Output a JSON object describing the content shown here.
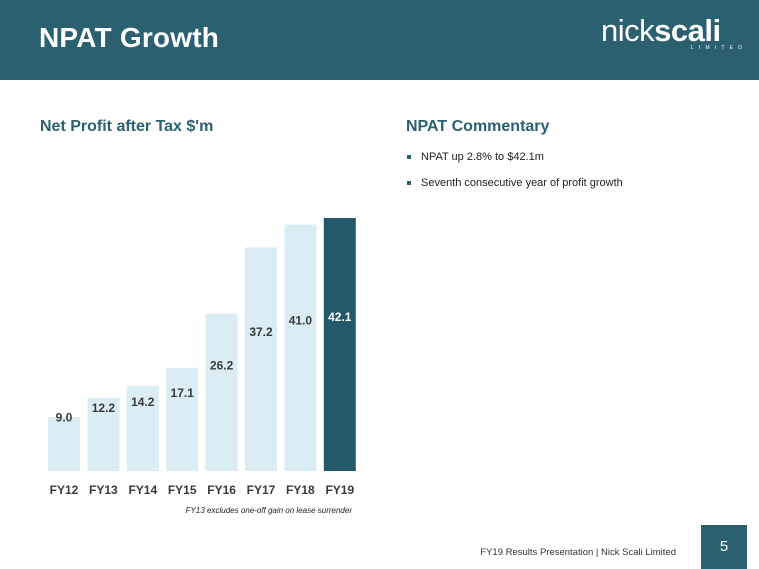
{
  "header": {
    "title": "NPAT Growth",
    "logo": {
      "text_light": "nick",
      "text_bold": "scali",
      "subtext": "LIMITED"
    }
  },
  "chart_heading": "Net Profit after Tax $'m",
  "commentary": {
    "heading": "NPAT Commentary",
    "bullets": [
      "NPAT up 2.8% to $42.1m",
      "Seventh consecutive year of profit growth"
    ]
  },
  "chart_data": {
    "type": "bar",
    "title": "Net Profit after Tax $'m",
    "xlabel": "",
    "ylabel": "",
    "categories": [
      "FY12",
      "FY13",
      "FY14",
      "FY15",
      "FY16",
      "FY17",
      "FY18",
      "FY19"
    ],
    "values": [
      9.0,
      12.2,
      14.2,
      17.1,
      26.2,
      37.2,
      41.0,
      42.1
    ],
    "value_labels": [
      "9.0",
      "12.2",
      "14.2",
      "17.1",
      "26.2",
      "37.2",
      "41.0",
      "42.1"
    ],
    "highlight_index": 7,
    "colors": {
      "bar": "#daecf4",
      "highlight": "#24596a",
      "label": "#3a3a3a",
      "highlight_label": "#ffffff"
    },
    "grid": false,
    "legend": "none"
  },
  "footnote": "FY13 excludes one-off gain on lease surrender",
  "footer": {
    "text": "FY19 Results Presentation  |  Nick Scali Limited",
    "page_number": "5"
  }
}
